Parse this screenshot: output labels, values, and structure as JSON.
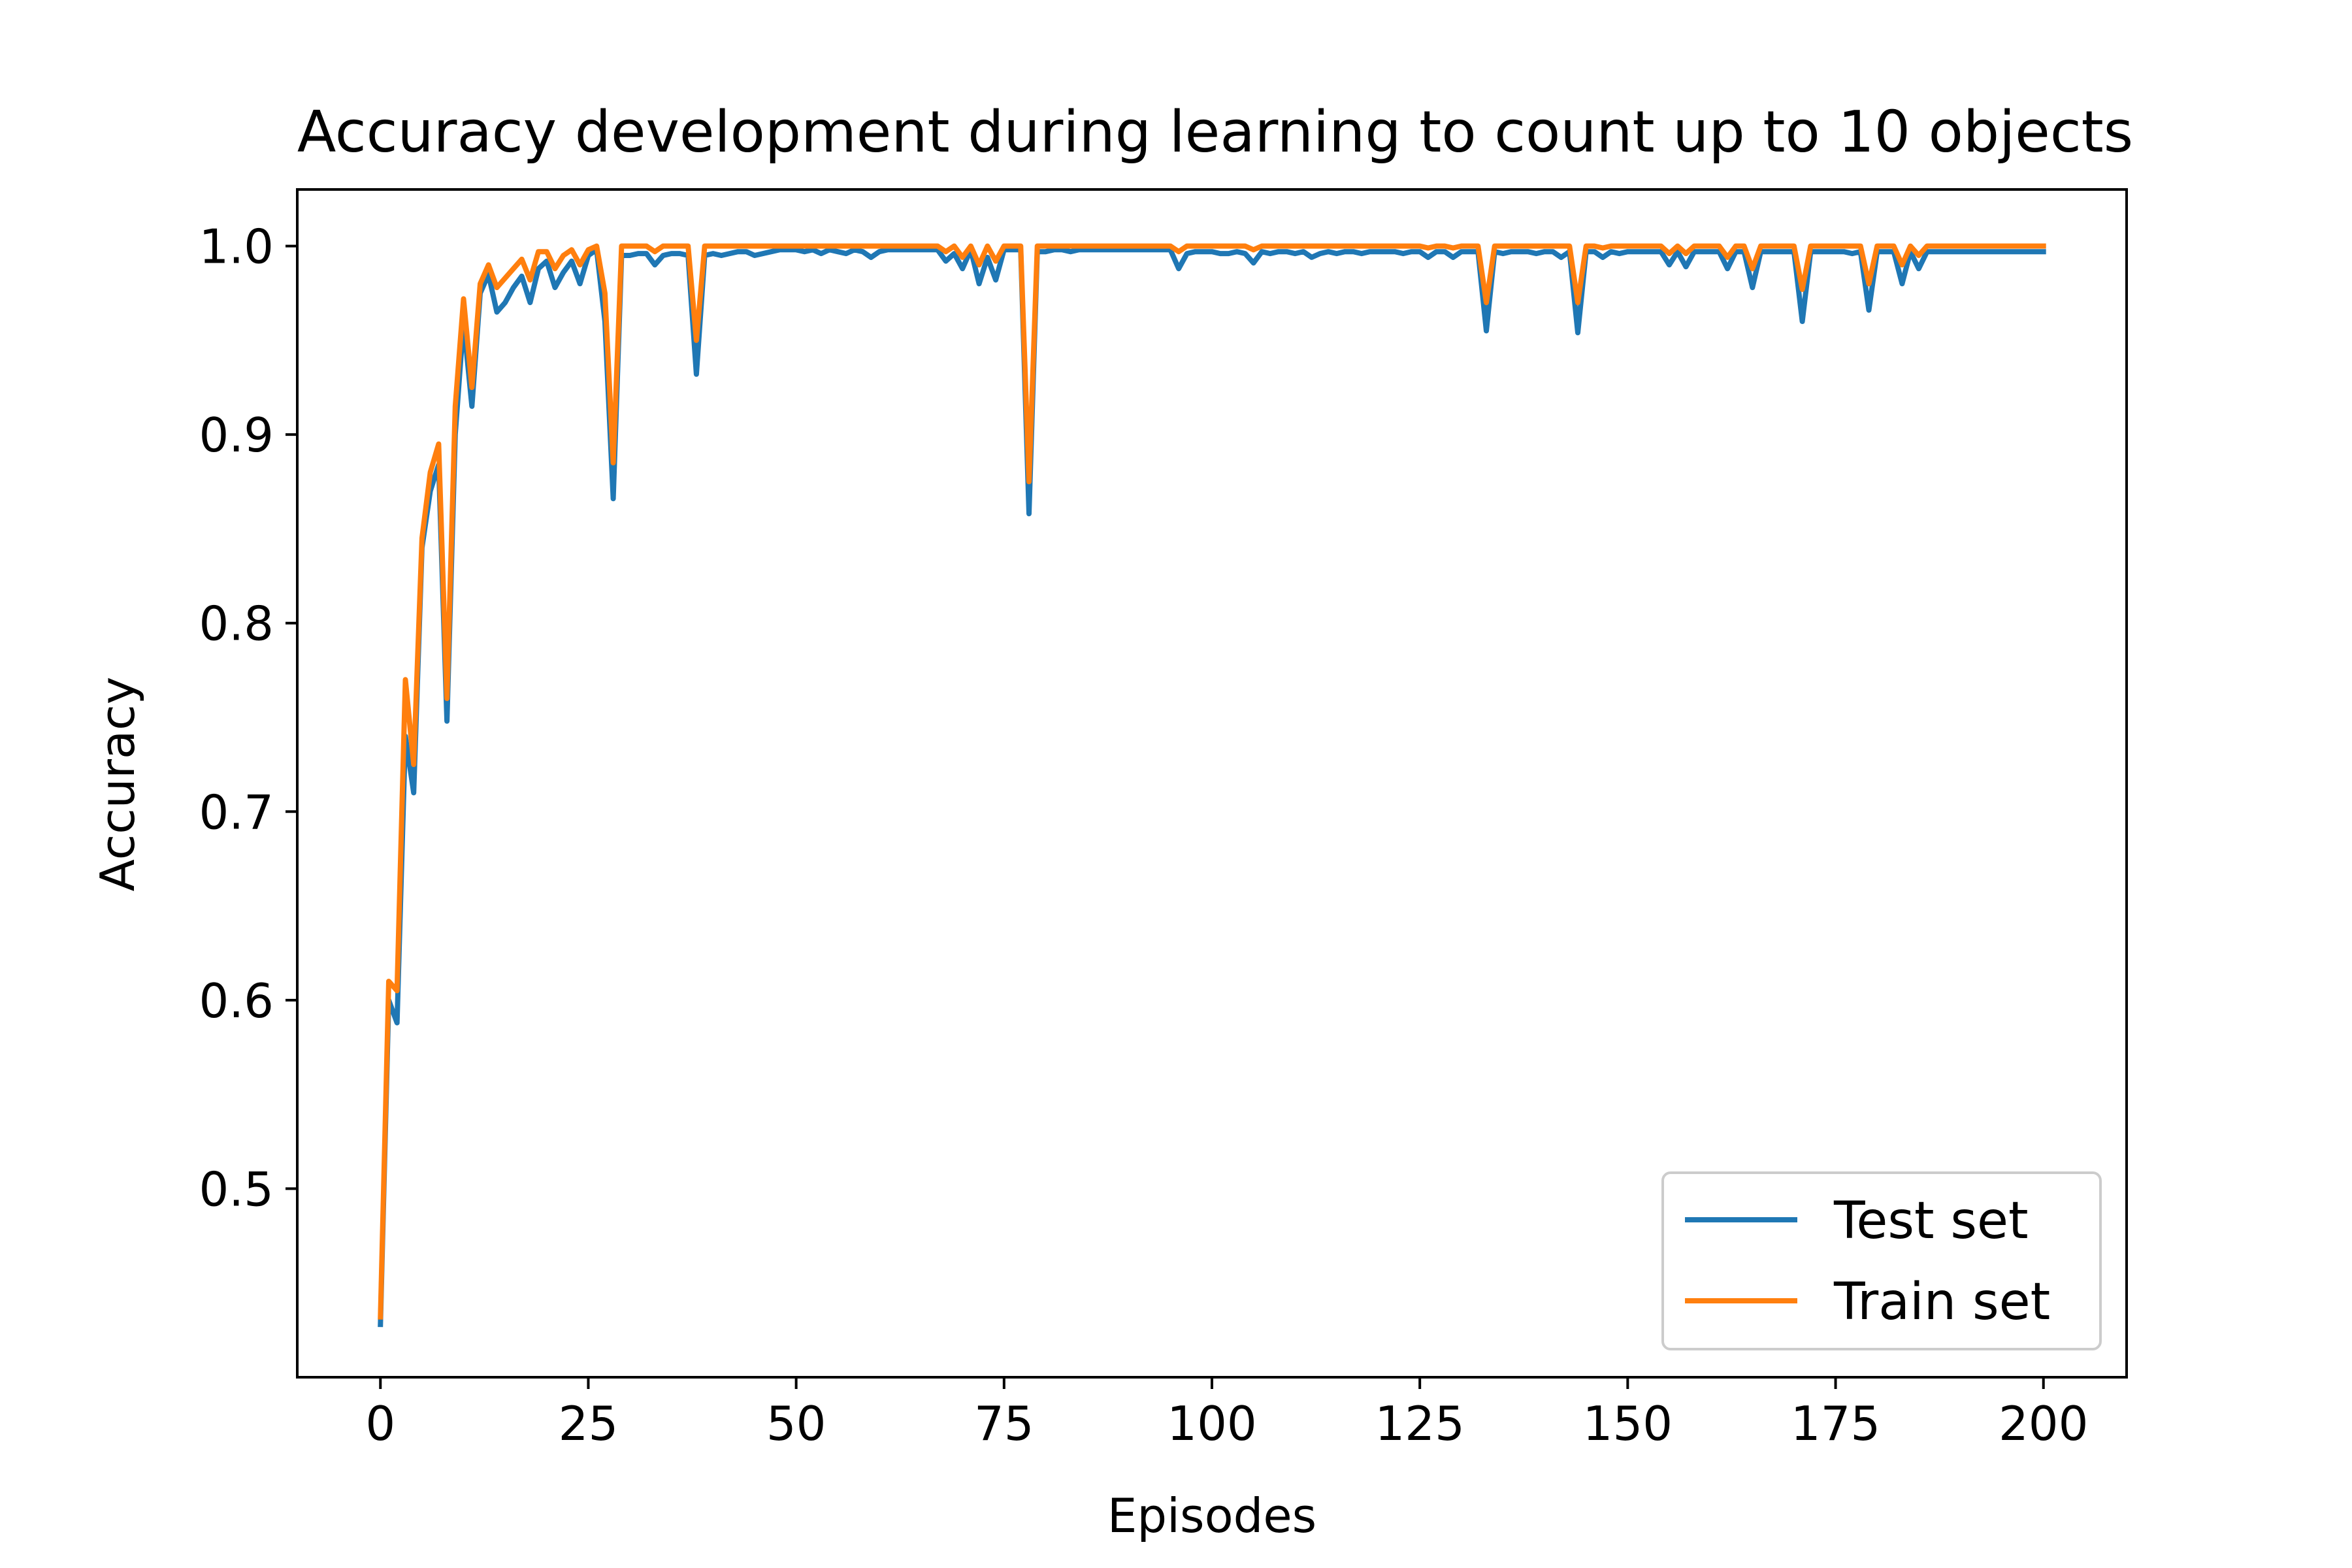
{
  "chart_data": {
    "type": "line",
    "title": "Accuracy development during learning to count up to 10 objects",
    "xlabel": "Episodes",
    "ylabel": "Accuracy",
    "xlim": [
      -10,
      210
    ],
    "ylim": [
      0.4,
      1.03
    ],
    "xticks": [
      0,
      25,
      50,
      75,
      100,
      125,
      150,
      175,
      200
    ],
    "xtick_labels": [
      "0",
      "25",
      "50",
      "75",
      "100",
      "125",
      "150",
      "175",
      "200"
    ],
    "yticks": [
      0.5,
      0.6,
      0.7,
      0.8,
      0.9,
      1.0
    ],
    "ytick_labels": [
      "0.5",
      "0.6",
      "0.7",
      "0.8",
      "0.9",
      "1.0"
    ],
    "grid": false,
    "legend_position": "lower-right",
    "series": [
      {
        "name": "Test set",
        "color": "#1f77b4",
        "values": [
          0.428,
          0.6,
          0.588,
          0.74,
          0.71,
          0.84,
          0.87,
          0.884,
          0.748,
          0.9,
          0.96,
          0.915,
          0.975,
          0.985,
          0.965,
          0.97,
          0.978,
          0.984,
          0.97,
          0.988,
          0.992,
          0.978,
          0.986,
          0.992,
          0.98,
          0.995,
          0.998,
          0.96,
          0.866,
          0.995,
          0.995,
          0.996,
          0.996,
          0.99,
          0.995,
          0.996,
          0.996,
          0.995,
          0.932,
          0.995,
          0.996,
          0.995,
          0.996,
          0.997,
          0.997,
          0.995,
          0.996,
          0.997,
          0.998,
          0.998,
          0.998,
          0.997,
          0.998,
          0.996,
          0.998,
          0.997,
          0.996,
          0.998,
          0.997,
          0.994,
          0.997,
          0.998,
          0.998,
          0.998,
          0.998,
          0.998,
          0.998,
          0.998,
          0.992,
          0.996,
          0.988,
          0.998,
          0.98,
          0.994,
          0.982,
          0.998,
          0.998,
          0.998,
          0.858,
          0.997,
          0.997,
          0.998,
          0.998,
          0.997,
          0.998,
          0.998,
          0.998,
          0.998,
          0.998,
          0.998,
          0.998,
          0.998,
          0.998,
          0.998,
          0.998,
          0.998,
          0.988,
          0.996,
          0.997,
          0.997,
          0.997,
          0.996,
          0.996,
          0.997,
          0.996,
          0.991,
          0.997,
          0.996,
          0.997,
          0.997,
          0.996,
          0.997,
          0.994,
          0.996,
          0.997,
          0.996,
          0.997,
          0.997,
          0.996,
          0.997,
          0.997,
          0.997,
          0.997,
          0.996,
          0.997,
          0.997,
          0.994,
          0.997,
          0.997,
          0.994,
          0.997,
          0.997,
          0.997,
          0.955,
          0.997,
          0.996,
          0.997,
          0.997,
          0.997,
          0.996,
          0.997,
          0.997,
          0.994,
          0.997,
          0.954,
          0.997,
          0.997,
          0.994,
          0.997,
          0.996,
          0.997,
          0.997,
          0.997,
          0.997,
          0.997,
          0.99,
          0.997,
          0.989,
          0.997,
          0.997,
          0.997,
          0.997,
          0.988,
          0.997,
          0.997,
          0.978,
          0.997,
          0.997,
          0.997,
          0.997,
          0.997,
          0.96,
          0.997,
          0.997,
          0.997,
          0.997,
          0.997,
          0.996,
          0.997,
          0.966,
          0.997,
          0.997,
          0.997,
          0.98,
          0.997,
          0.988,
          0.997,
          0.997,
          0.997,
          0.997,
          0.997,
          0.997,
          0.997,
          0.997,
          0.997,
          0.997,
          0.997,
          0.997,
          0.997,
          0.997,
          0.997
        ]
      },
      {
        "name": "Train set",
        "color": "#ff7f0e",
        "values": [
          0.432,
          0.61,
          0.605,
          0.77,
          0.725,
          0.845,
          0.88,
          0.895,
          0.76,
          0.915,
          0.972,
          0.925,
          0.98,
          0.99,
          0.978,
          0.983,
          0.988,
          0.993,
          0.982,
          0.997,
          0.997,
          0.988,
          0.995,
          0.998,
          0.99,
          0.998,
          1.0,
          0.975,
          0.885,
          1.0,
          1.0,
          1.0,
          1.0,
          0.997,
          1.0,
          1.0,
          1.0,
          1.0,
          0.95,
          1.0,
          1.0,
          1.0,
          1.0,
          1.0,
          1.0,
          1.0,
          1.0,
          1.0,
          1.0,
          1.0,
          1.0,
          1.0,
          1.0,
          1.0,
          1.0,
          1.0,
          1.0,
          1.0,
          1.0,
          1.0,
          1.0,
          1.0,
          1.0,
          1.0,
          1.0,
          1.0,
          1.0,
          1.0,
          0.997,
          1.0,
          0.994,
          1.0,
          0.99,
          1.0,
          0.992,
          1.0,
          1.0,
          1.0,
          0.875,
          1.0,
          1.0,
          1.0,
          1.0,
          1.0,
          1.0,
          1.0,
          1.0,
          1.0,
          1.0,
          1.0,
          1.0,
          1.0,
          1.0,
          1.0,
          1.0,
          1.0,
          0.997,
          1.0,
          1.0,
          1.0,
          1.0,
          1.0,
          1.0,
          1.0,
          1.0,
          0.998,
          1.0,
          1.0,
          1.0,
          1.0,
          1.0,
          1.0,
          1.0,
          1.0,
          1.0,
          1.0,
          1.0,
          1.0,
          1.0,
          1.0,
          1.0,
          1.0,
          1.0,
          1.0,
          1.0,
          1.0,
          0.999,
          1.0,
          1.0,
          0.999,
          1.0,
          1.0,
          1.0,
          0.97,
          1.0,
          1.0,
          1.0,
          1.0,
          1.0,
          1.0,
          1.0,
          1.0,
          1.0,
          1.0,
          0.97,
          1.0,
          1.0,
          0.999,
          1.0,
          1.0,
          1.0,
          1.0,
          1.0,
          1.0,
          1.0,
          0.996,
          1.0,
          0.996,
          1.0,
          1.0,
          1.0,
          1.0,
          0.994,
          1.0,
          1.0,
          0.988,
          1.0,
          1.0,
          1.0,
          1.0,
          1.0,
          0.977,
          1.0,
          1.0,
          1.0,
          1.0,
          1.0,
          1.0,
          1.0,
          0.98,
          1.0,
          1.0,
          1.0,
          0.99,
          1.0,
          0.995,
          1.0,
          1.0,
          1.0,
          1.0,
          1.0,
          1.0,
          1.0,
          1.0,
          1.0,
          1.0,
          1.0,
          1.0,
          1.0,
          1.0,
          1.0
        ]
      }
    ]
  }
}
